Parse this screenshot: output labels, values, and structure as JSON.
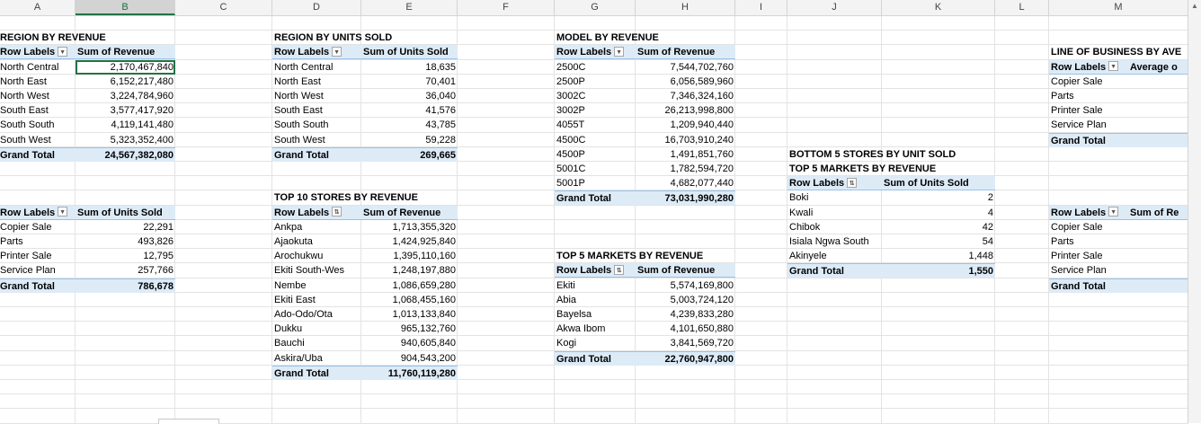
{
  "columns": [
    "A",
    "B",
    "C",
    "D",
    "E",
    "F",
    "G",
    "H",
    "I",
    "J",
    "K",
    "L",
    "M"
  ],
  "region_revenue": {
    "title": "REGION BY REVENUE",
    "h1": "Row Labels",
    "h2": "Sum of Revenue",
    "rows": [
      [
        "North Central",
        "2,170,467,840"
      ],
      [
        "North East",
        "6,152,217,480"
      ],
      [
        "North West",
        "3,224,784,960"
      ],
      [
        "South East",
        "3,577,417,920"
      ],
      [
        "South South",
        "4,119,141,480"
      ],
      [
        "South West",
        "5,323,352,400"
      ]
    ],
    "total": [
      "Grand Total",
      "24,567,382,080"
    ]
  },
  "region_units": {
    "title": "REGION BY UNITS SOLD",
    "h1": "Row Labels",
    "h2": "Sum of Units Sold",
    "rows": [
      [
        "North Central",
        "18,635"
      ],
      [
        "North East",
        "70,401"
      ],
      [
        "North West",
        "36,040"
      ],
      [
        "South East",
        "41,576"
      ],
      [
        "South South",
        "43,785"
      ],
      [
        "South West",
        "59,228"
      ]
    ],
    "total": [
      "Grand Total",
      "269,665"
    ]
  },
  "model_revenue": {
    "title": "MODEL BY REVENUE",
    "h1": "Row Labels",
    "h2": "Sum of Revenue",
    "rows": [
      [
        "2500C",
        "7,544,702,760"
      ],
      [
        "2500P",
        "6,056,589,960"
      ],
      [
        "3002C",
        "7,346,324,160"
      ],
      [
        "3002P",
        "26,213,998,800"
      ],
      [
        "4055T",
        "1,209,940,440"
      ],
      [
        "4500C",
        "16,703,910,240"
      ],
      [
        "4500P",
        "1,491,851,760"
      ],
      [
        "5001C",
        "1,782,594,720"
      ],
      [
        "5001P",
        "4,682,077,440"
      ]
    ],
    "total": [
      "Grand Total",
      "73,031,990,280"
    ]
  },
  "lob_avg": {
    "title": "LINE OF BUSINESS BY AVE",
    "h1": "Row Labels",
    "h2": "Average o",
    "rows": [
      "Copier Sale",
      "Parts",
      "Printer Sale",
      "Service Plan"
    ],
    "total": "Grand Total"
  },
  "bottom_stores": {
    "title1": "BOTTOM 5 STORES BY UNIT SOLD",
    "title2": "TOP 5 MARKETS BY REVENUE",
    "h1": "Row Labels",
    "h2": "Sum of Units Sold",
    "rows": [
      [
        "Boki",
        "2"
      ],
      [
        "Kwali",
        "4"
      ],
      [
        "Chibok",
        "42"
      ],
      [
        "Isiala Ngwa South",
        "54"
      ],
      [
        "Akinyele",
        "1,448"
      ]
    ],
    "total": [
      "Grand Total",
      "1,550"
    ]
  },
  "lob_units": {
    "h1": "Row Labels",
    "h2": "Sum of Units Sold",
    "rows": [
      [
        "Copier Sale",
        "22,291"
      ],
      [
        "Parts",
        "493,826"
      ],
      [
        "Printer Sale",
        "12,795"
      ],
      [
        "Service Plan",
        "257,766"
      ]
    ],
    "total": [
      "Grand Total",
      "786,678"
    ]
  },
  "top_stores": {
    "title": "TOP 10 STORES BY REVENUE",
    "h1": "Row Labels",
    "h2": "Sum of Revenue",
    "rows": [
      [
        "Ankpa",
        "1,713,355,320"
      ],
      [
        "Ajaokuta",
        "1,424,925,840"
      ],
      [
        "Arochukwu",
        "1,395,110,160"
      ],
      [
        "Ekiti South-Wes",
        "1,248,197,880"
      ],
      [
        "Nembe",
        "1,086,659,280"
      ],
      [
        "Ekiti East",
        "1,068,455,160"
      ],
      [
        "Ado-Odo/Ota",
        "1,013,133,840"
      ],
      [
        "Dukku",
        "965,132,760"
      ],
      [
        "Bauchi",
        "940,605,840"
      ],
      [
        "Askira/Uba",
        "904,543,200"
      ]
    ],
    "total": [
      "Grand Total",
      "11,760,119,280"
    ]
  },
  "top_markets": {
    "title": "TOP 5 MARKETS BY REVENUE",
    "h1": "Row Labels",
    "h2": "Sum of Revenue",
    "rows": [
      [
        "Ekiti",
        "5,574,169,800"
      ],
      [
        "Abia",
        "5,003,724,120"
      ],
      [
        "Bayelsa",
        "4,239,833,280"
      ],
      [
        "Akwa Ibom",
        "4,101,650,880"
      ],
      [
        "Kogi",
        "3,841,569,720"
      ]
    ],
    "total": [
      "Grand Total",
      "22,760,947,800"
    ]
  },
  "lob_rev": {
    "h1": "Row Labels",
    "h2": "Sum of Re",
    "rows": [
      "Copier Sale",
      "Parts",
      "Printer Sale",
      "Service Plan"
    ],
    "total": "Grand Total"
  },
  "icons": {
    "dropdown": "chevron-down-icon",
    "filter": "filter-sort-icon",
    "scroll_up": "arrow-up-icon"
  }
}
